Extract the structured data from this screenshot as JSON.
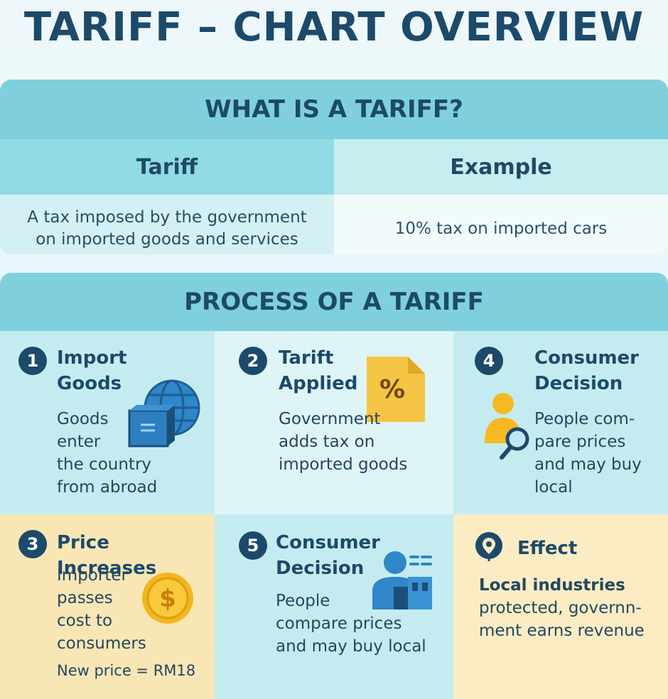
{
  "title": "TARIFF – CHART OVERVIEW",
  "what": {
    "heading": "WHAT IS A TARIFF?",
    "col_tariff": "Tariff",
    "col_example": "Example",
    "definition_1": "A tax imposed by the government",
    "definition_2": "on imported goods and services",
    "example": "10% tax on imported cars"
  },
  "process": {
    "heading": "PROCESS OF A TARIFF",
    "steps": [
      {
        "num": "1",
        "title_1": "Import",
        "title_2": "Goods",
        "body": [
          "Goods",
          "enter",
          "the country",
          "from abroad"
        ],
        "icon": "globe-box-icon"
      },
      {
        "num": "2",
        "title_1": "Tarift",
        "title_2": "Applied",
        "body": [
          "Government",
          "adds tax on",
          "imported goods"
        ],
        "icon": "percent-document-icon"
      },
      {
        "num": "4",
        "title_1": "Consumer",
        "title_2": "Decision",
        "body": [
          "People com-",
          "pare prices",
          "and may buy",
          "local"
        ],
        "icon": "person-search-icon"
      },
      {
        "num": "3",
        "title_1": "Price Increases",
        "body": [
          "Importer",
          "passes",
          "cost to",
          "consumers"
        ],
        "note": "New price = RM18",
        "icon": "dollar-coin-icon"
      },
      {
        "num": "5",
        "title_1": "Consumer",
        "title_2": "Decision",
        "body": [
          "People",
          "compare prices",
          "and may buy local"
        ],
        "icon": "person-shop-icon"
      },
      {
        "title_1": "Effect",
        "body_b1": "Local industries",
        "body_2": "protected, governn-",
        "body_3": "ment earns revenue",
        "icon": "location-pin-icon"
      }
    ]
  },
  "colors": {
    "header": "#7fd0dc",
    "navy": "#1c4a6b",
    "blue": "#2f86c8",
    "yellow": "#f6c445"
  }
}
